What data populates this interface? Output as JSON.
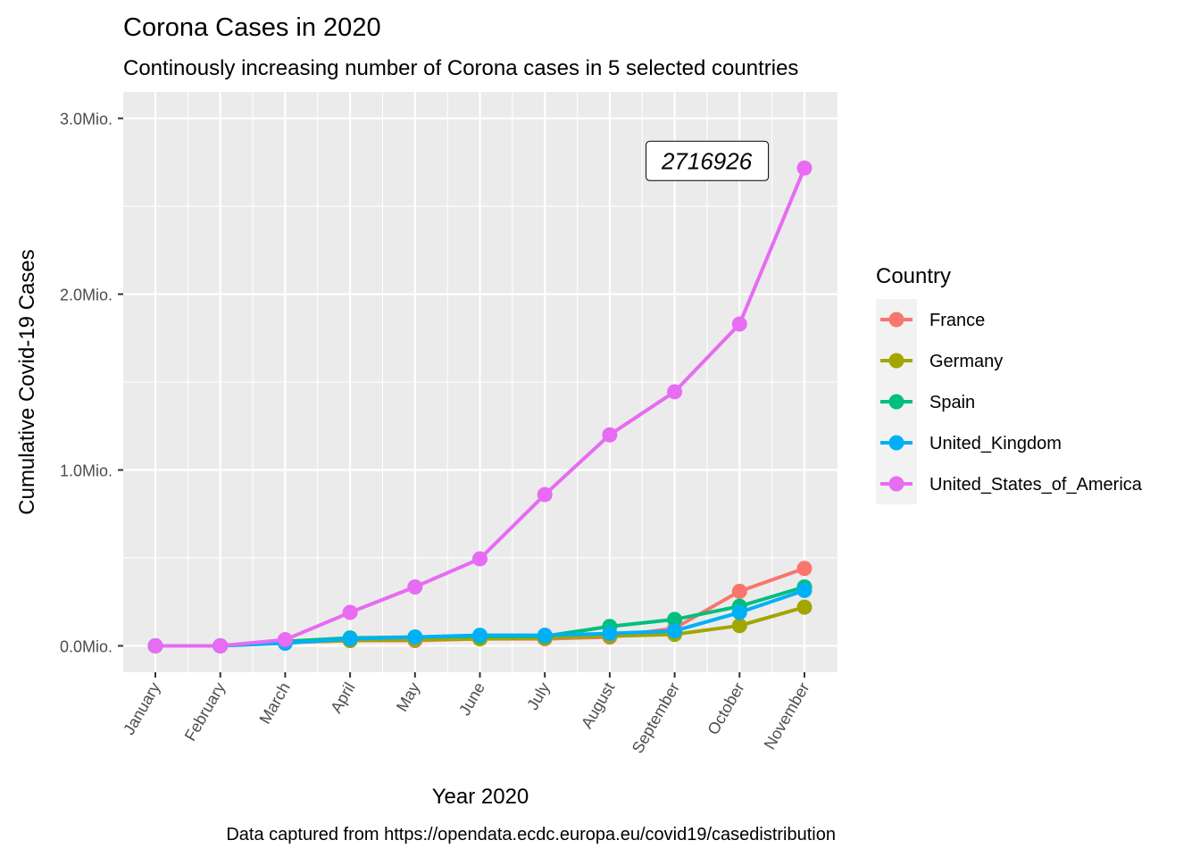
{
  "chart_data": {
    "type": "line",
    "title": "Corona Cases in 2020",
    "subtitle": "Continously increasing number of Corona cases in 5 selected countries",
    "xlabel": "Year 2020",
    "ylabel": "Cumulative Covid-19 Cases",
    "caption": "Data captured from https://opendata.ecdc.europa.eu/covid19/casedistribution",
    "categories": [
      "January",
      "February",
      "March",
      "April",
      "May",
      "June",
      "July",
      "August",
      "September",
      "October",
      "November"
    ],
    "y_ticks": [
      {
        "value": 0,
        "label": "0.0Mio."
      },
      {
        "value": 1000000,
        "label": "1.0Mio."
      },
      {
        "value": 2000000,
        "label": "2.0Mio."
      },
      {
        "value": 3000000,
        "label": "3.0Mio."
      }
    ],
    "ylim": [
      -150000,
      3150000
    ],
    "grid": true,
    "legend": {
      "title": "Country",
      "position": "right"
    },
    "series": [
      {
        "name": "France",
        "color": "#F8766D",
        "values": [
          0,
          0,
          20000,
          30000,
          30000,
          40000,
          40000,
          50000,
          100000,
          310000,
          440000
        ]
      },
      {
        "name": "Germany",
        "color": "#A3A500",
        "values": [
          0,
          0,
          20000,
          30000,
          35000,
          40000,
          45000,
          55000,
          65000,
          115000,
          220000
        ]
      },
      {
        "name": "Spain",
        "color": "#00BF7D",
        "values": [
          0,
          0,
          25000,
          45000,
          50000,
          55000,
          55000,
          110000,
          150000,
          225000,
          335000
        ]
      },
      {
        "name": "United_Kingdom",
        "color": "#00B0F6",
        "values": [
          0,
          0,
          15000,
          40000,
          50000,
          60000,
          60000,
          70000,
          85000,
          190000,
          315000
        ]
      },
      {
        "name": "United_States_of_America",
        "color": "#E76BF3",
        "values": [
          0,
          0,
          35000,
          190000,
          335000,
          495000,
          860000,
          1200000,
          1445000,
          1830000,
          2716926
        ]
      }
    ],
    "annotation": {
      "text": "2716926",
      "x": "September",
      "y": 2716926
    }
  }
}
